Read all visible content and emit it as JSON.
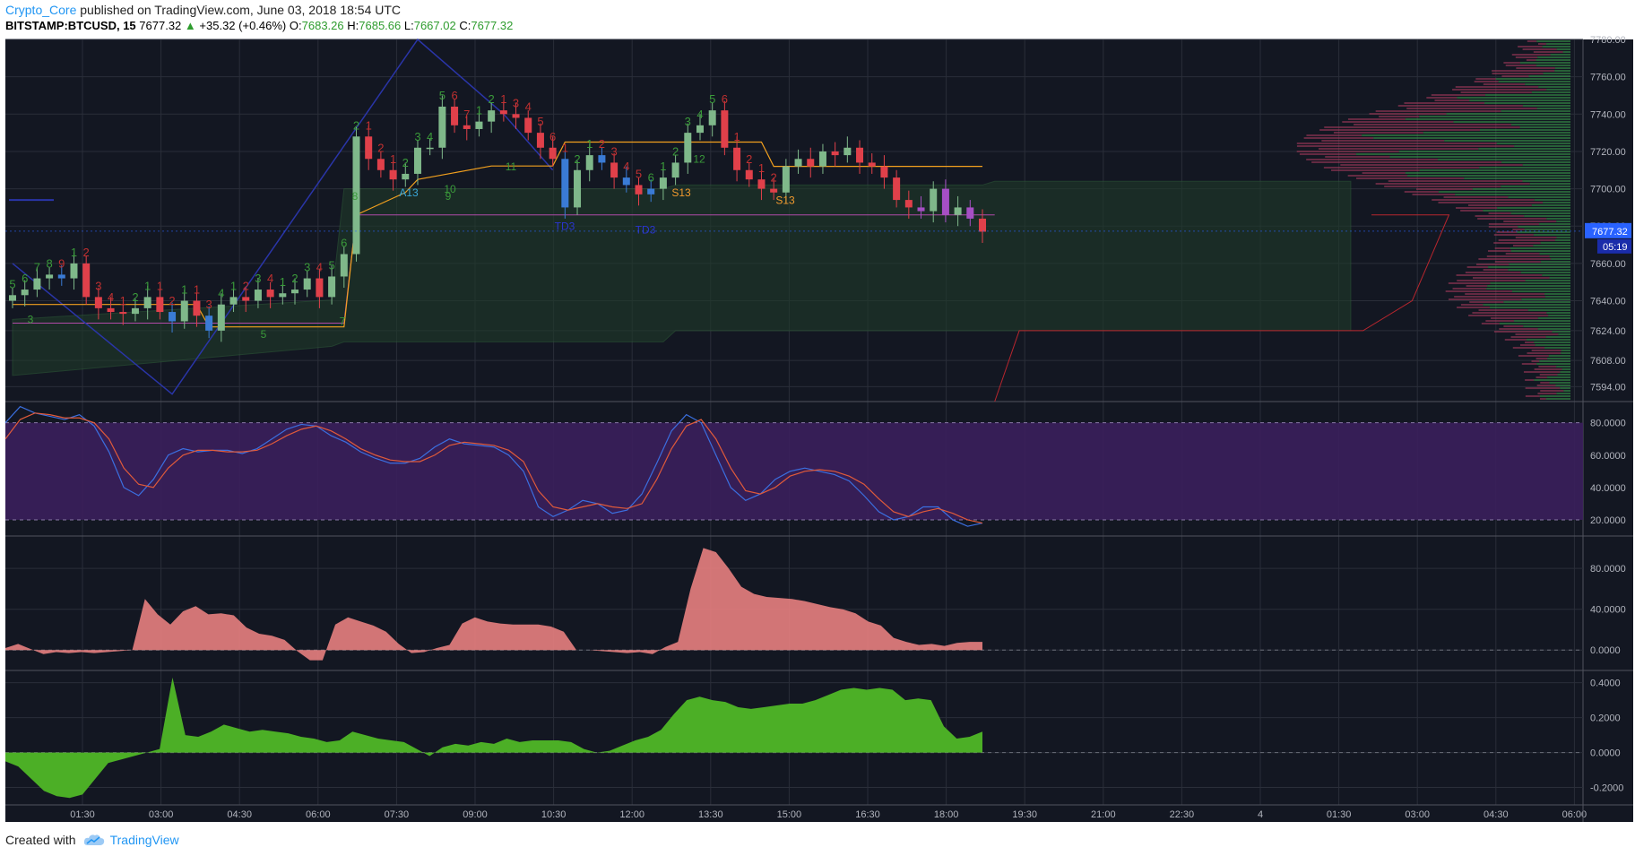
{
  "header": {
    "author": "Crypto_Core",
    "published_text": " published on TradingView.com, June 03, 2018 18:54 UTC",
    "symbol": "BITSTAMP:BTCUSD, 15",
    "last": "7677.32",
    "change": "+35.32 (+0.46%)",
    "o_label": "O:",
    "o_value": "7683.26",
    "h_label": "H:",
    "h_value": "7685.66",
    "l_label": "L:",
    "l_value": "7667.02",
    "c_label": "C:",
    "c_value": "7677.32"
  },
  "footer": {
    "created_with": "Created with",
    "brand": "TradingView"
  },
  "colors": {
    "background": "#131722",
    "grid": "#2a2e39",
    "bull": "#7fb88a",
    "bear": "#e0404a",
    "blue_candle": "#3a7bd5",
    "purple_candle": "#a64fc4",
    "orange_line": "#f2a01e",
    "stoch_band": "#3b1f5c",
    "stoch_k": "#3b6fe0",
    "stoch_d": "#e05a3a",
    "momentum_fill": "#e88080",
    "green_fill": "#4caf26",
    "price_tag": "#2962ff"
  },
  "chart_data": [
    {
      "type": "candlestick",
      "pane": "price",
      "time_labels": [
        "01:30",
        "03:00",
        "04:30",
        "06:00",
        "07:30",
        "09:00",
        "10:30",
        "12:00",
        "13:30",
        "15:00",
        "16:30",
        "18:00",
        "19:30",
        "21:00",
        "22:30",
        "4",
        "01:30",
        "03:00",
        "04:30",
        "06:00"
      ],
      "y_ticks": [
        "7780.00",
        "7760.00",
        "7740.00",
        "7720.00",
        "7700.00",
        "7680.00",
        "7660.00",
        "7640.00",
        "7624.00",
        "7608.00",
        "7594.00"
      ],
      "ylim": [
        7586,
        7780
      ],
      "last_price": "7677.32",
      "countdown": "05:19",
      "series_close": [
        7643,
        7646,
        7652,
        7654,
        7652,
        7660,
        7642,
        7636,
        7634,
        7633,
        7636,
        7642,
        7634,
        7629,
        7640,
        7632,
        7624,
        7638,
        7642,
        7640,
        7646,
        7642,
        7644,
        7646,
        7652,
        7642,
        7653,
        7665,
        7728,
        7716,
        7710,
        7705,
        7708,
        7722,
        7722,
        7744,
        7734,
        7732,
        7736,
        7742,
        7740,
        7738,
        7730,
        7722,
        7716,
        7690,
        7710,
        7718,
        7714,
        7706,
        7702,
        7697,
        7700,
        7706,
        7714,
        7730,
        7734,
        7742,
        7722,
        7710,
        7705,
        7700,
        7698,
        7712,
        7716,
        7712,
        7720,
        7718,
        7722,
        7714,
        7712,
        7706,
        7694,
        7690,
        7688,
        7700,
        7686,
        7690,
        7684,
        7677
      ],
      "candle_markers": [
        "5",
        "6",
        "7",
        "8",
        "9",
        "1",
        "2",
        "3",
        "4",
        "1",
        "2",
        "1",
        "1",
        "2",
        "1",
        "1",
        "3",
        "4",
        "1",
        "2",
        "3",
        "4",
        "1",
        "2",
        "3",
        "4",
        "5",
        "6",
        "2",
        "1",
        "2",
        "1",
        "2",
        "3",
        "4",
        "5",
        "6",
        "7",
        "1",
        "2",
        "1",
        "3",
        "4",
        "5",
        "6",
        "1",
        "2",
        "1",
        "2",
        "3",
        "4",
        "5",
        "6",
        "1",
        "2",
        "3",
        "4",
        "5",
        "6",
        "1",
        "2",
        "1",
        "2"
      ],
      "annotations": [
        "S13",
        "S13",
        "A13",
        "TD3",
        "TD3",
        "11",
        "12",
        "10",
        "9",
        "8",
        "7",
        "5",
        "3"
      ]
    },
    {
      "type": "line",
      "pane": "stochastic",
      "y_ticks": [
        "80.0000",
        "60.0000",
        "40.0000",
        "20.0000"
      ],
      "ylim": [
        10,
        92
      ],
      "band": [
        20,
        80
      ],
      "series": [
        {
          "values": [
            80,
            90,
            86,
            84,
            82,
            85,
            78,
            62,
            40,
            35,
            45,
            60,
            64,
            62,
            63,
            63,
            61,
            64,
            70,
            76,
            79,
            78,
            72,
            68,
            62,
            58,
            55,
            55,
            58,
            65,
            70,
            67,
            66,
            65,
            60,
            50,
            28,
            22,
            26,
            32,
            30,
            24,
            26,
            36,
            55,
            75,
            85,
            80,
            60,
            40,
            32,
            36,
            45,
            50,
            52,
            50,
            48,
            44,
            35,
            25,
            20,
            22,
            28,
            28,
            20,
            16,
            18
          ]
        },
        {
          "values": [
            70,
            82,
            86,
            85,
            83,
            83,
            80,
            70,
            52,
            42,
            40,
            52,
            60,
            63,
            63,
            62,
            62,
            63,
            67,
            72,
            76,
            78,
            75,
            70,
            64,
            60,
            57,
            56,
            56,
            60,
            66,
            68,
            67,
            66,
            63,
            56,
            38,
            28,
            26,
            28,
            30,
            28,
            27,
            30,
            45,
            64,
            78,
            82,
            70,
            52,
            38,
            36,
            40,
            47,
            50,
            51,
            50,
            47,
            42,
            33,
            25,
            22,
            25,
            27,
            24,
            20,
            18
          ]
        }
      ]
    },
    {
      "type": "area",
      "pane": "momentum",
      "y_ticks": [
        "80.0000",
        "40.0000",
        "0.0000"
      ],
      "ylim": [
        -20,
        110
      ],
      "values": [
        2,
        6,
        1,
        -4,
        -2,
        -3,
        -2,
        -3,
        -2,
        -1,
        0,
        50,
        35,
        25,
        38,
        43,
        35,
        36,
        34,
        22,
        16,
        14,
        10,
        -1,
        -10,
        -10,
        25,
        32,
        28,
        24,
        18,
        6,
        -3,
        -2,
        2,
        5,
        26,
        32,
        28,
        26,
        25,
        25,
        25,
        23,
        18,
        0,
        0,
        -1,
        -2,
        -3,
        -2,
        -4,
        3,
        8,
        60,
        100,
        96,
        80,
        62,
        55,
        52,
        51,
        50,
        48,
        45,
        42,
        40,
        36,
        28,
        24,
        12,
        8,
        5,
        6,
        4,
        7,
        8,
        8
      ]
    },
    {
      "type": "area",
      "pane": "oscillator",
      "y_ticks": [
        "0.4000",
        "0.2000",
        "0.0000",
        "-0.2000"
      ],
      "ylim": [
        -0.3,
        0.46
      ],
      "values": [
        -0.05,
        -0.08,
        -0.15,
        -0.22,
        -0.25,
        -0.26,
        -0.24,
        -0.15,
        -0.06,
        -0.04,
        -0.02,
        0.0,
        0.02,
        0.43,
        0.1,
        0.09,
        0.12,
        0.16,
        0.14,
        0.12,
        0.13,
        0.12,
        0.11,
        0.09,
        0.08,
        0.06,
        0.07,
        0.12,
        0.1,
        0.08,
        0.07,
        0.06,
        0.02,
        -0.02,
        0.03,
        0.05,
        0.04,
        0.06,
        0.05,
        0.08,
        0.06,
        0.07,
        0.07,
        0.07,
        0.06,
        0.02,
        0.0,
        0.01,
        0.04,
        0.07,
        0.09,
        0.13,
        0.22,
        0.3,
        0.32,
        0.3,
        0.29,
        0.26,
        0.25,
        0.26,
        0.27,
        0.28,
        0.28,
        0.3,
        0.33,
        0.36,
        0.37,
        0.36,
        0.37,
        0.36,
        0.3,
        0.31,
        0.3,
        0.15,
        0.08,
        0.09,
        0.12
      ]
    }
  ]
}
